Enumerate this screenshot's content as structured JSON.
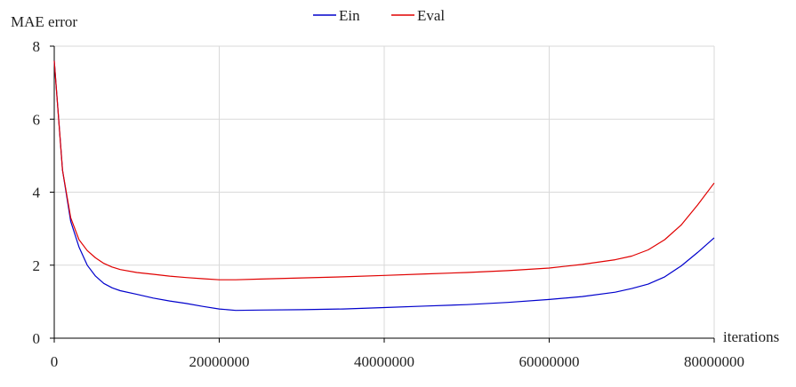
{
  "chart_data": {
    "type": "line",
    "title": "",
    "xlabel": "iterations",
    "ylabel": "MAE error",
    "xlim": [
      0,
      80000000
    ],
    "ylim": [
      0,
      8
    ],
    "xticks": [
      0,
      20000000,
      40000000,
      60000000,
      80000000
    ],
    "xtick_labels": [
      "0",
      "20000000",
      "40000000",
      "60000000",
      "80000000"
    ],
    "yticks": [
      0,
      2,
      4,
      6,
      8
    ],
    "ytick_labels": [
      "0",
      "2",
      "4",
      "6",
      "8"
    ],
    "grid": true,
    "legend_position": "top-center",
    "series": [
      {
        "name": "Ein",
        "color": "#0000cc",
        "x": [
          0,
          1000000,
          2000000,
          3000000,
          4000000,
          5000000,
          6000000,
          7000000,
          8000000,
          10000000,
          12000000,
          14000000,
          16000000,
          18000000,
          20000000,
          22000000,
          25000000,
          30000000,
          35000000,
          40000000,
          45000000,
          50000000,
          55000000,
          60000000,
          64000000,
          68000000,
          70000000,
          72000000,
          74000000,
          76000000,
          78000000,
          80000000
        ],
        "y": [
          7.6,
          4.6,
          3.2,
          2.5,
          2.0,
          1.7,
          1.5,
          1.38,
          1.3,
          1.2,
          1.1,
          1.02,
          0.95,
          0.87,
          0.8,
          0.76,
          0.77,
          0.78,
          0.8,
          0.84,
          0.88,
          0.92,
          0.98,
          1.06,
          1.14,
          1.26,
          1.36,
          1.48,
          1.68,
          1.98,
          2.35,
          2.75
        ]
      },
      {
        "name": "Eval",
        "color": "#e00000",
        "x": [
          0,
          1000000,
          2000000,
          3000000,
          4000000,
          5000000,
          6000000,
          7000000,
          8000000,
          10000000,
          12000000,
          14000000,
          16000000,
          18000000,
          20000000,
          22000000,
          25000000,
          30000000,
          35000000,
          40000000,
          45000000,
          50000000,
          55000000,
          60000000,
          64000000,
          68000000,
          70000000,
          72000000,
          74000000,
          76000000,
          78000000,
          80000000
        ],
        "y": [
          7.6,
          4.6,
          3.3,
          2.7,
          2.4,
          2.2,
          2.05,
          1.95,
          1.88,
          1.8,
          1.75,
          1.7,
          1.66,
          1.63,
          1.6,
          1.6,
          1.62,
          1.65,
          1.68,
          1.72,
          1.76,
          1.8,
          1.85,
          1.92,
          2.02,
          2.15,
          2.25,
          2.42,
          2.7,
          3.1,
          3.65,
          4.25
        ]
      }
    ]
  }
}
